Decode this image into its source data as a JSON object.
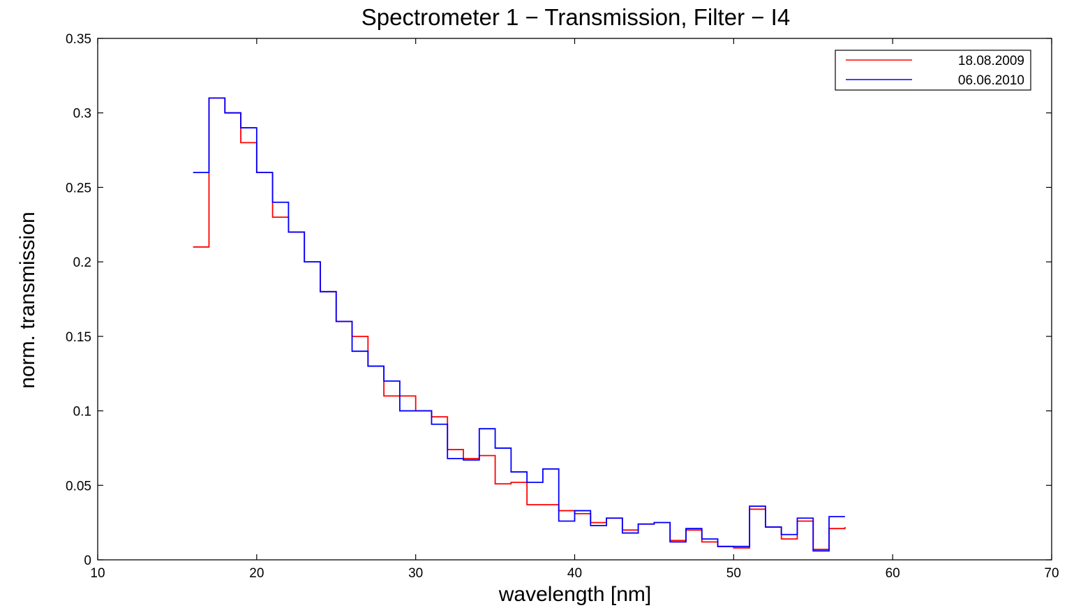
{
  "chart_data": {
    "type": "line",
    "title": "Spectrometer 1 − Transmission, Filter − I4",
    "xlabel": "wavelength [nm]",
    "ylabel": "norm. transmission",
    "xlim": [
      10,
      70
    ],
    "ylim": [
      0,
      0.35
    ],
    "xticks": [
      10,
      20,
      30,
      40,
      50,
      60,
      70
    ],
    "xtick_labels": [
      "10",
      "20",
      "30",
      "40",
      "50",
      "60",
      "70"
    ],
    "yticks": [
      0,
      0.05,
      0.1,
      0.15,
      0.2,
      0.25,
      0.3,
      0.35
    ],
    "ytick_labels": [
      "0",
      "0.05",
      "0.1",
      "0.15",
      "0.2",
      "0.25",
      "0.3",
      "0.35"
    ],
    "grid": false,
    "legend_position": "top-right",
    "step": "post",
    "x": [
      16,
      17,
      18,
      19,
      20,
      21,
      22,
      23,
      24,
      25,
      26,
      27,
      28,
      29,
      30,
      31,
      32,
      33,
      34,
      35,
      36,
      37,
      38,
      39,
      40,
      41,
      42,
      43,
      44,
      45,
      46,
      47,
      48,
      49,
      50,
      51,
      52,
      53,
      54,
      55,
      56,
      57
    ],
    "series": [
      {
        "name": "18.08.2009",
        "color": "#ff0000",
        "values": [
          0.21,
          0.31,
          0.3,
          0.28,
          0.26,
          0.23,
          0.22,
          0.2,
          0.18,
          0.16,
          0.15,
          0.13,
          0.11,
          0.11,
          0.1,
          0.096,
          0.074,
          0.068,
          0.07,
          0.051,
          0.052,
          0.037,
          0.037,
          0.033,
          0.031,
          0.025,
          0.028,
          0.02,
          0.024,
          0.025,
          0.013,
          0.02,
          0.012,
          0.009,
          0.008,
          0.034,
          0.022,
          0.014,
          0.026,
          0.007,
          0.021,
          0.022
        ]
      },
      {
        "name": "06.06.2010",
        "color": "#0000ff",
        "values": [
          0.26,
          0.31,
          0.3,
          0.29,
          0.26,
          0.24,
          0.22,
          0.2,
          0.18,
          0.16,
          0.14,
          0.13,
          0.12,
          0.1,
          0.1,
          0.091,
          0.068,
          0.067,
          0.088,
          0.075,
          0.059,
          0.052,
          0.061,
          0.026,
          0.033,
          0.023,
          0.028,
          0.018,
          0.024,
          0.025,
          0.012,
          0.021,
          0.014,
          0.009,
          0.009,
          0.036,
          0.022,
          0.017,
          0.028,
          0.006,
          0.029,
          0.029
        ]
      }
    ]
  }
}
